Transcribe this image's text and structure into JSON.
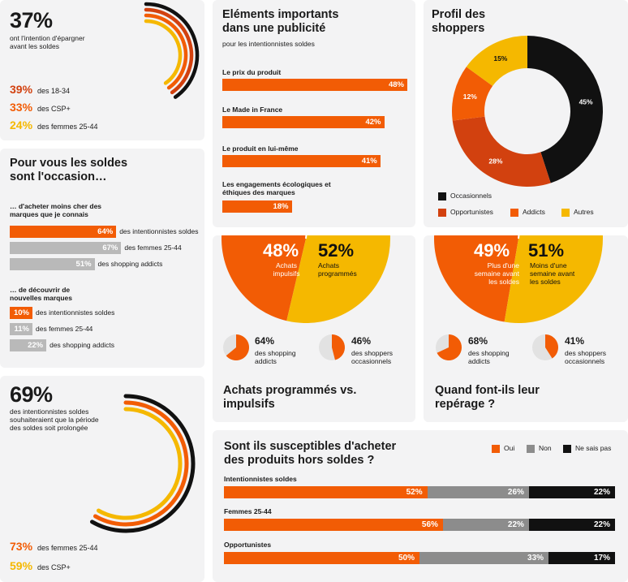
{
  "colors": {
    "orange": "#f25c05",
    "yellow": "#f5b800",
    "red": "#d2410f",
    "black": "#111111",
    "gray": "#8c8c8c",
    "lightgray": "#b9b9b9"
  },
  "savings": {
    "big": "37%",
    "desc": "ont l'intention d'épargner avant les soldes",
    "stats": [
      {
        "pct": "39%",
        "label": "des 18-34",
        "color": "#d2410f"
      },
      {
        "pct": "33%",
        "label": "des CSP+",
        "color": "#f25c05"
      },
      {
        "pct": "24%",
        "label": "des femmes 25-44",
        "color": "#f5b800"
      }
    ]
  },
  "occasion": {
    "title": "Pour vous les soldes sont l'occasion…",
    "groups": [
      {
        "heading": "… d'acheter moins cher des marques que je connais",
        "rows": [
          {
            "pct": "64%",
            "value": 64,
            "label": "des intentionnistes soldes",
            "highlight": true
          },
          {
            "pct": "67%",
            "value": 67,
            "label": "des femmes 25-44",
            "highlight": false
          },
          {
            "pct": "51%",
            "value": 51,
            "label": "des shopping addicts",
            "highlight": false
          }
        ]
      },
      {
        "heading": "… de découvrir de nouvelles marques",
        "rows": [
          {
            "pct": "10%",
            "value": 10,
            "label": "des intentionnistes soldes",
            "highlight": true
          },
          {
            "pct": "11%",
            "value": 11,
            "label": "des femmes 25-44",
            "highlight": false
          },
          {
            "pct": "22%",
            "value": 22,
            "label": "des shopping addicts",
            "highlight": false
          }
        ]
      }
    ]
  },
  "prolong": {
    "big": "69%",
    "desc": "des intentionnistes soldes souhaiteraient que la période des soldes soit prolongée",
    "stats": [
      {
        "pct": "73%",
        "label": "des femmes 25-44",
        "color": "#f25c05"
      },
      {
        "pct": "59%",
        "label": "des CSP+",
        "color": "#f5b800"
      }
    ]
  },
  "ad": {
    "title": "Eléments importants dans une publicité",
    "subtitle": "pour les intentionnistes soldes",
    "items": [
      {
        "label": "Le prix du produit",
        "pct": "48%",
        "value": 48
      },
      {
        "label": "Le Made in France",
        "pct": "42%",
        "value": 42
      },
      {
        "label": "Le produit en lui-même",
        "pct": "41%",
        "value": 41
      },
      {
        "label": "Les engagements écologiques et éthiques des marques",
        "pct": "18%",
        "value": 18
      }
    ]
  },
  "profile": {
    "title": "Profil des shoppers",
    "legend": [
      "Occasionnels",
      "Opportunistes",
      "Addicts",
      "Autres"
    ]
  },
  "purchase": {
    "left_pct": "48%",
    "left_label": "Achats impulsifs",
    "right_pct": "52%",
    "right_label": "Achats programmés",
    "mini": [
      {
        "pct": "64%",
        "label": "des shopping addicts",
        "value": 64
      },
      {
        "pct": "46%",
        "label": "des shoppers occasionnels",
        "value": 46
      }
    ],
    "title": "Achats programmés vs. impulsifs"
  },
  "timing": {
    "left_pct": "49%",
    "left_label": "Plus d'une semaine avant les soldes",
    "right_pct": "51%",
    "right_label": "Moins d'une semaine avant les soldes",
    "mini": [
      {
        "pct": "68%",
        "label": "des shopping addicts",
        "value": 68
      },
      {
        "pct": "41%",
        "label": "des shoppers occasionnels",
        "value": 41
      }
    ],
    "title": "Quand font-ils leur repérage ?"
  },
  "horsSoldes": {
    "title": "Sont ils susceptibles d'acheter des produits hors soldes ?",
    "legend": [
      "Oui",
      "Non",
      "Ne sais pas"
    ],
    "rows": [
      {
        "label": "Intentionnistes soldes",
        "values": [
          "52%",
          "26%",
          "22%"
        ]
      },
      {
        "label": "Femmes 25-44",
        "values": [
          "56%",
          "22%",
          "22%"
        ]
      },
      {
        "label": "Opportunistes",
        "values": [
          "50%",
          "33%",
          "17%"
        ]
      }
    ]
  },
  "chart_data": [
    {
      "type": "pie",
      "title": "Profil des shoppers",
      "labels": [
        "Occasionnels",
        "Opportunistes",
        "Addicts",
        "Autres"
      ],
      "values": [
        45,
        28,
        12,
        15
      ],
      "colors": [
        "#111111",
        "#d2410f",
        "#f25c05",
        "#f5b800"
      ],
      "hole": true
    },
    {
      "type": "bar",
      "title": "Eléments importants dans une publicité",
      "categories": [
        "Le prix du produit",
        "Le Made in France",
        "Le produit en lui-même",
        "Les engagements écologiques et éthiques des marques"
      ],
      "values": [
        48,
        42,
        41,
        18
      ]
    },
    {
      "type": "pie",
      "labels": [
        "Achats impulsifs",
        "Achats programmés"
      ],
      "values": [
        48,
        52
      ],
      "colors": [
        "#f25c05",
        "#f5b800"
      ]
    },
    {
      "type": "pie",
      "labels": [
        "Plus d'une semaine avant les soldes",
        "Moins d'une semaine avant les soldes"
      ],
      "values": [
        49,
        51
      ],
      "colors": [
        "#f25c05",
        "#f5b800"
      ]
    },
    {
      "type": "bar",
      "title": "Sont ils susceptibles d'acheter des produits hors soldes ?",
      "stacked": true,
      "categories": [
        "Intentionnistes soldes",
        "Femmes 25-44",
        "Opportunistes"
      ],
      "series": [
        {
          "name": "Oui",
          "values": [
            52,
            56,
            50
          ]
        },
        {
          "name": "Non",
          "values": [
            26,
            22,
            33
          ]
        },
        {
          "name": "Ne sais pas",
          "values": [
            22,
            22,
            17
          ]
        }
      ]
    },
    {
      "type": "bar",
      "title": "Pour vous les soldes sont l'occasion…",
      "categories": [
        "des intentionnistes soldes",
        "des femmes 25-44",
        "des shopping addicts"
      ],
      "series": [
        {
          "name": "… d'acheter moins cher des marques que je connais",
          "values": [
            64,
            67,
            51
          ]
        },
        {
          "name": "… de découvrir de nouvelles marques",
          "values": [
            10,
            11,
            22
          ]
        }
      ]
    }
  ]
}
